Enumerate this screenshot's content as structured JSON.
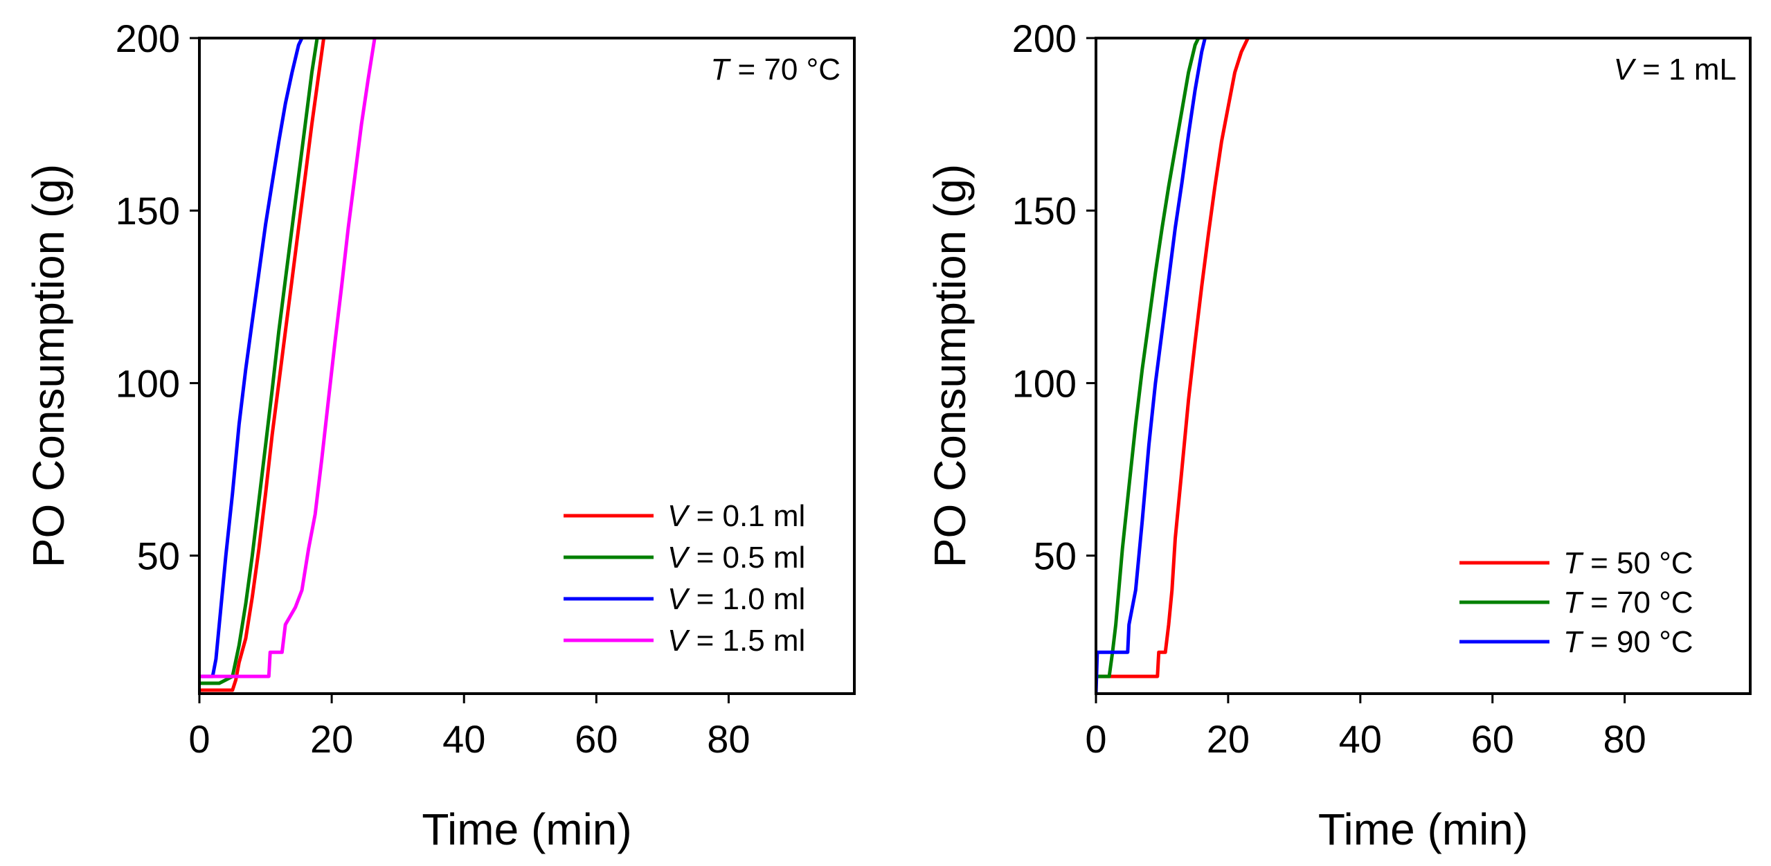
{
  "chart_data": [
    {
      "type": "line",
      "title": "",
      "xlabel": "Time (min)",
      "ylabel": "PO Consumption (g)",
      "xlim": [
        0,
        99
      ],
      "ylim": [
        10,
        200
      ],
      "x_ticks": [
        0,
        20,
        40,
        60,
        80
      ],
      "y_ticks": [
        50,
        100,
        150,
        200
      ],
      "grid": false,
      "annotation": {
        "symbol": "T",
        "text": " = 70 °C"
      },
      "legend_position": "bottom-right",
      "series": [
        {
          "name": "V = 0.1 ml",
          "symbol": "V",
          "text": " = 0.1 ml",
          "color": "#ff0000",
          "points": [
            [
              0,
              11
            ],
            [
              5,
              11
            ],
            [
              5.5,
              14
            ],
            [
              6,
              19
            ],
            [
              7,
              26
            ],
            [
              8,
              38
            ],
            [
              9,
              52
            ],
            [
              10,
              68
            ],
            [
              11,
              85
            ],
            [
              12,
              100
            ],
            [
              13,
              115
            ],
            [
              14,
              130
            ],
            [
              15,
              145
            ],
            [
              16,
              160
            ],
            [
              17,
              175
            ],
            [
              18,
              189
            ],
            [
              18.8,
              200
            ]
          ]
        },
        {
          "name": "V = 0.5 ml",
          "symbol": "V",
          "text": " = 0.5 ml",
          "color": "#008000",
          "points": [
            [
              0,
              13
            ],
            [
              3,
              13
            ],
            [
              4,
              14
            ],
            [
              5,
              15
            ],
            [
              6,
              24
            ],
            [
              7,
              36
            ],
            [
              8,
              50
            ],
            [
              9,
              66
            ],
            [
              10,
              82
            ],
            [
              11,
              98
            ],
            [
              12,
              115
            ],
            [
              13,
              130
            ],
            [
              14,
              145
            ],
            [
              15,
              160
            ],
            [
              16,
              175
            ],
            [
              17,
              190
            ],
            [
              17.8,
              200
            ]
          ]
        },
        {
          "name": "V = 1.0 ml",
          "symbol": "V",
          "text": " = 1.0 ml",
          "color": "#0000ff",
          "points": [
            [
              0,
              15
            ],
            [
              2,
              15
            ],
            [
              2.5,
              20
            ],
            [
              3,
              30
            ],
            [
              4,
              50
            ],
            [
              5,
              68
            ],
            [
              6,
              88
            ],
            [
              7,
              104
            ],
            [
              8,
              118
            ],
            [
              9,
              132
            ],
            [
              10,
              146
            ],
            [
              11,
              158
            ],
            [
              12,
              170
            ],
            [
              13,
              181
            ],
            [
              14,
              190
            ],
            [
              15,
              198
            ],
            [
              15.5,
              200
            ]
          ]
        },
        {
          "name": "V = 1.5 ml",
          "symbol": "V",
          "text": " = 1.5 ml",
          "color": "#ff00ff",
          "points": [
            [
              0,
              15
            ],
            [
              10.5,
              15
            ],
            [
              10.7,
              22
            ],
            [
              12.5,
              22
            ],
            [
              13,
              30
            ],
            [
              14.5,
              35
            ],
            [
              15.5,
              40
            ],
            [
              16.5,
              52
            ],
            [
              17.5,
              62
            ],
            [
              18.5,
              78
            ],
            [
              19.5,
              95
            ],
            [
              20.5,
              112
            ],
            [
              21.5,
              128
            ],
            [
              22.5,
              145
            ],
            [
              23.5,
              160
            ],
            [
              24.5,
              175
            ],
            [
              25.5,
              188
            ],
            [
              26.5,
              200
            ]
          ]
        }
      ]
    },
    {
      "type": "line",
      "title": "",
      "xlabel": "Time (min)",
      "ylabel": "PO Consumption (g)",
      "xlim": [
        0,
        99
      ],
      "ylim": [
        10,
        200
      ],
      "x_ticks": [
        0,
        20,
        40,
        60,
        80
      ],
      "y_ticks": [
        50,
        100,
        150,
        200
      ],
      "grid": false,
      "annotation": {
        "symbol": "V",
        "text": " = 1 mL"
      },
      "legend_position": "bottom-right",
      "series": [
        {
          "name": "T = 50 °C",
          "symbol": "T",
          "text": " = 50 °C",
          "color": "#ff0000",
          "points": [
            [
              0,
              15
            ],
            [
              9.3,
              15
            ],
            [
              9.5,
              22
            ],
            [
              10.5,
              22
            ],
            [
              11,
              30
            ],
            [
              11.5,
              40
            ],
            [
              12,
              55
            ],
            [
              13,
              75
            ],
            [
              14,
              95
            ],
            [
              15,
              112
            ],
            [
              16,
              128
            ],
            [
              17,
              143
            ],
            [
              18,
              157
            ],
            [
              19,
              170
            ],
            [
              20,
              180
            ],
            [
              21,
              190
            ],
            [
              22,
              196
            ],
            [
              23,
              200
            ]
          ]
        },
        {
          "name": "T = 70 °C",
          "symbol": "T",
          "text": " = 70 °C",
          "color": "#008000",
          "points": [
            [
              0,
              15
            ],
            [
              2,
              15
            ],
            [
              2.5,
              22
            ],
            [
              3,
              30
            ],
            [
              4,
              52
            ],
            [
              5,
              70
            ],
            [
              6,
              88
            ],
            [
              7,
              104
            ],
            [
              8,
              118
            ],
            [
              9,
              132
            ],
            [
              10,
              145
            ],
            [
              11,
              157
            ],
            [
              12,
              168
            ],
            [
              13,
              179
            ],
            [
              14,
              190
            ],
            [
              15,
              198
            ],
            [
              15.5,
              200
            ]
          ]
        },
        {
          "name": "T = 90 °C",
          "symbol": "T",
          "text": " = 90 °C",
          "color": "#0000ff",
          "points": [
            [
              0,
              10
            ],
            [
              0.2,
              22
            ],
            [
              4.8,
              22
            ],
            [
              5,
              30
            ],
            [
              6,
              40
            ],
            [
              7,
              60
            ],
            [
              8,
              82
            ],
            [
              9,
              100
            ],
            [
              10,
              115
            ],
            [
              11,
              130
            ],
            [
              12,
              145
            ],
            [
              13,
              158
            ],
            [
              14,
              172
            ],
            [
              15,
              185
            ],
            [
              16,
              196
            ],
            [
              16.5,
              200
            ]
          ]
        }
      ]
    }
  ]
}
